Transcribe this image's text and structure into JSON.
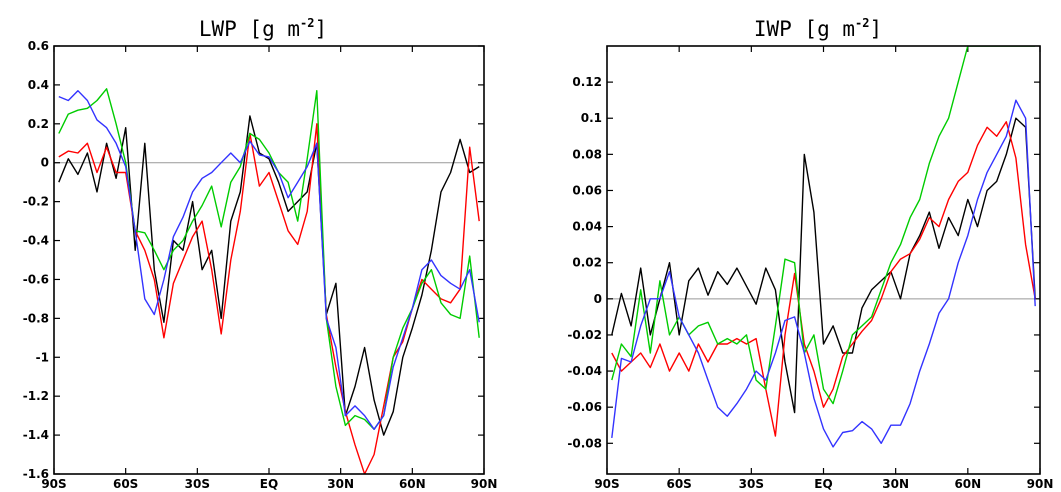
{
  "chart_data": [
    {
      "type": "line",
      "title": "LWP [g m⁻²]",
      "title_main": "LWP [g m",
      "title_sup": "-2",
      "title_end": "]",
      "xlim": [
        -90,
        90
      ],
      "ylim": [
        -1.6,
        0.6
      ],
      "xticks": [
        -90,
        -60,
        -30,
        0,
        30,
        60,
        90
      ],
      "xtick_labels": [
        "90S",
        "60S",
        "30S",
        "EQ",
        "30N",
        "60N",
        "90N"
      ],
      "yticks": [
        -1.6,
        -1.4,
        -1.2,
        -1,
        -0.8,
        -0.6,
        -0.4,
        -0.2,
        0,
        0.2,
        0.4,
        0.6
      ],
      "ytick_labels": [
        "-1.6",
        "-1.4",
        "-1.2",
        "-1",
        "-0.8",
        "-0.6",
        "-0.4",
        "-0.2",
        "0",
        "0.2",
        "0.4",
        "0.6"
      ],
      "zero_line": true,
      "x": [
        -88,
        -84,
        -80,
        -76,
        -72,
        -68,
        -64,
        -60,
        -56,
        -52,
        -48,
        -44,
        -40,
        -36,
        -32,
        -28,
        -24,
        -20,
        -16,
        -12,
        -8,
        -4,
        0,
        4,
        8,
        12,
        16,
        20,
        24,
        28,
        32,
        36,
        40,
        44,
        48,
        52,
        56,
        60,
        64,
        68,
        72,
        76,
        80,
        84,
        88
      ],
      "series": [
        {
          "color": "#000000",
          "values": [
            -0.1,
            0.02,
            -0.06,
            0.05,
            -0.15,
            0.1,
            -0.08,
            0.18,
            -0.45,
            0.1,
            -0.55,
            -0.82,
            -0.4,
            -0.45,
            -0.2,
            -0.55,
            -0.45,
            -0.8,
            -0.3,
            -0.15,
            0.24,
            0.05,
            0.02,
            -0.1,
            -0.25,
            -0.2,
            -0.15,
            0.1,
            -0.78,
            -0.62,
            -1.3,
            -1.15,
            -0.95,
            -1.22,
            -1.4,
            -1.28,
            -1.0,
            -0.85,
            -0.68,
            -0.45,
            -0.15,
            -0.05,
            0.12,
            -0.05,
            -0.02
          ]
        },
        {
          "color": "#ff0000",
          "values": [
            0.03,
            0.06,
            0.05,
            0.1,
            -0.05,
            0.08,
            -0.05,
            -0.05,
            -0.35,
            -0.45,
            -0.6,
            -0.9,
            -0.62,
            -0.5,
            -0.38,
            -0.3,
            -0.55,
            -0.88,
            -0.5,
            -0.25,
            0.15,
            -0.12,
            -0.05,
            -0.2,
            -0.35,
            -0.42,
            -0.25,
            0.2,
            -0.78,
            -1.05,
            -1.28,
            -1.45,
            -1.6,
            -1.5,
            -1.25,
            -1.0,
            -0.92,
            -0.75,
            -0.6,
            -0.65,
            -0.7,
            -0.72,
            -0.65,
            0.08,
            -0.3
          ]
        },
        {
          "color": "#00cc00",
          "values": [
            0.15,
            0.25,
            0.27,
            0.28,
            0.32,
            0.38,
            0.2,
            0.0,
            -0.35,
            -0.36,
            -0.45,
            -0.55,
            -0.45,
            -0.4,
            -0.3,
            -0.22,
            -0.12,
            -0.33,
            -0.1,
            -0.02,
            0.15,
            0.12,
            0.05,
            -0.05,
            -0.1,
            -0.3,
            0.02,
            0.37,
            -0.8,
            -1.15,
            -1.35,
            -1.3,
            -1.32,
            -1.37,
            -1.3,
            -1.0,
            -0.85,
            -0.75,
            -0.62,
            -0.55,
            -0.72,
            -0.78,
            -0.8,
            -0.48,
            -0.9
          ]
        },
        {
          "color": "#3333ff",
          "values": [
            0.34,
            0.32,
            0.37,
            0.32,
            0.22,
            0.18,
            0.1,
            -0.02,
            -0.35,
            -0.7,
            -0.78,
            -0.6,
            -0.38,
            -0.28,
            -0.15,
            -0.08,
            -0.05,
            0.0,
            0.05,
            0.0,
            0.11,
            0.04,
            0.03,
            -0.05,
            -0.18,
            -0.1,
            -0.02,
            0.1,
            -0.8,
            -0.95,
            -1.3,
            -1.25,
            -1.3,
            -1.37,
            -1.3,
            -1.05,
            -0.9,
            -0.75,
            -0.55,
            -0.5,
            -0.58,
            -0.62,
            -0.65,
            -0.55,
            -0.82
          ]
        }
      ]
    },
    {
      "type": "line",
      "title": "IWP [g m⁻²]",
      "title_main": "IWP [g m",
      "title_sup": "-2",
      "title_end": "]",
      "xlim": [
        -90,
        90
      ],
      "ylim": [
        -0.097,
        0.14
      ],
      "xticks": [
        -90,
        -60,
        -30,
        0,
        30,
        60,
        90
      ],
      "xtick_labels": [
        "90S",
        "60S",
        "30S",
        "EQ",
        "30N",
        "60N",
        "90N"
      ],
      "yticks": [
        -0.08,
        -0.06,
        -0.04,
        -0.02,
        0,
        0.02,
        0.04,
        0.06,
        0.08,
        0.1,
        0.12
      ],
      "ytick_labels": [
        "-0.08",
        "-0.06",
        "-0.04",
        "-0.02",
        "0",
        "0.02",
        "0.04",
        "0.06",
        "0.08",
        "0.1",
        "0.12"
      ],
      "zero_line": true,
      "x": [
        -88,
        -84,
        -80,
        -76,
        -72,
        -68,
        -64,
        -60,
        -56,
        -52,
        -48,
        -44,
        -40,
        -36,
        -32,
        -28,
        -24,
        -20,
        -16,
        -12,
        -8,
        -4,
        0,
        4,
        8,
        12,
        16,
        20,
        24,
        28,
        32,
        36,
        40,
        44,
        48,
        52,
        56,
        60,
        64,
        68,
        72,
        76,
        80,
        84,
        88
      ],
      "series": [
        {
          "color": "#000000",
          "values": [
            -0.02,
            0.003,
            -0.015,
            0.017,
            -0.02,
            0.0,
            0.02,
            -0.02,
            0.01,
            0.017,
            0.002,
            0.015,
            0.008,
            0.017,
            0.007,
            -0.003,
            0.017,
            0.005,
            -0.035,
            -0.063,
            0.08,
            0.048,
            -0.025,
            -0.015,
            -0.03,
            -0.03,
            -0.005,
            0.005,
            0.01,
            0.015,
            0.0,
            0.025,
            0.035,
            0.048,
            0.028,
            0.045,
            0.035,
            0.055,
            0.04,
            0.06,
            0.065,
            0.08,
            0.1,
            0.095,
            0.0
          ]
        },
        {
          "color": "#ff0000",
          "values": [
            -0.03,
            -0.04,
            -0.035,
            -0.03,
            -0.038,
            -0.025,
            -0.04,
            -0.03,
            -0.04,
            -0.025,
            -0.035,
            -0.025,
            -0.025,
            -0.022,
            -0.025,
            -0.022,
            -0.05,
            -0.076,
            -0.02,
            0.014,
            -0.025,
            -0.04,
            -0.06,
            -0.05,
            -0.032,
            -0.025,
            -0.018,
            -0.012,
            0.0,
            0.015,
            0.022,
            0.025,
            0.033,
            0.045,
            0.04,
            0.055,
            0.065,
            0.07,
            0.085,
            0.095,
            0.09,
            0.098,
            0.078,
            0.03,
            0.0
          ]
        },
        {
          "color": "#00cc00",
          "values": [
            -0.045,
            -0.025,
            -0.032,
            0.005,
            -0.03,
            0.01,
            -0.02,
            -0.01,
            -0.02,
            -0.015,
            -0.013,
            -0.025,
            -0.022,
            -0.025,
            -0.02,
            -0.045,
            -0.05,
            -0.015,
            0.022,
            0.02,
            -0.03,
            -0.02,
            -0.05,
            -0.058,
            -0.04,
            -0.02,
            -0.015,
            -0.01,
            0.005,
            0.02,
            0.03,
            0.045,
            0.055,
            0.075,
            0.09,
            0.1,
            0.12,
            0.14,
            0.14,
            0.14,
            0.14,
            0.14,
            0.14,
            0.14,
            0.14
          ]
        },
        {
          "color": "#3333ff",
          "values": [
            -0.077,
            -0.033,
            -0.035,
            -0.015,
            0.0,
            0.0,
            0.015,
            -0.01,
            -0.02,
            -0.03,
            -0.045,
            -0.06,
            -0.065,
            -0.058,
            -0.05,
            -0.04,
            -0.045,
            -0.03,
            -0.012,
            -0.01,
            -0.03,
            -0.055,
            -0.072,
            -0.082,
            -0.074,
            -0.073,
            -0.068,
            -0.072,
            -0.08,
            -0.07,
            -0.07,
            -0.058,
            -0.04,
            -0.025,
            -0.008,
            0.0,
            0.02,
            0.035,
            0.055,
            0.07,
            0.08,
            0.09,
            0.11,
            0.1,
            -0.004
          ]
        }
      ]
    }
  ]
}
